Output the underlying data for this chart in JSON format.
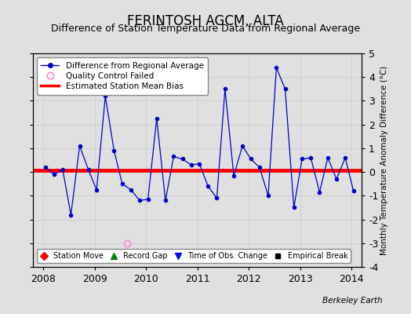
{
  "title": "FERINTOSH AGCM, ALTA",
  "subtitle": "Difference of Station Temperature Data from Regional Average",
  "ylabel_right": "Monthly Temperature Anomaly Difference (°C)",
  "xlim": [
    2007.8,
    2014.2
  ],
  "ylim": [
    -4,
    5
  ],
  "yticks": [
    -4,
    -3,
    -2,
    -1,
    0,
    1,
    2,
    3,
    4,
    5
  ],
  "xticks": [
    2008,
    2009,
    2010,
    2011,
    2012,
    2013,
    2014
  ],
  "bias_value": 0.07,
  "background_color": "#e0e0e0",
  "line_color": "#0000cc",
  "bias_color": "#ff0000",
  "watermark": "Berkeley Earth",
  "data_x": [
    2008.04,
    2008.21,
    2008.38,
    2008.54,
    2008.71,
    2008.88,
    2009.04,
    2009.21,
    2009.38,
    2009.54,
    2009.71,
    2009.88,
    2010.04,
    2010.21,
    2010.38,
    2010.54,
    2010.71,
    2010.88,
    2011.04,
    2011.21,
    2011.38,
    2011.54,
    2011.71,
    2011.88,
    2012.04,
    2012.21,
    2012.38,
    2012.54,
    2012.71,
    2012.88,
    2013.04,
    2013.21,
    2013.38,
    2013.54,
    2013.71,
    2013.88,
    2014.04
  ],
  "data_y": [
    0.2,
    -0.1,
    0.1,
    -1.8,
    1.1,
    0.1,
    -0.75,
    3.2,
    0.9,
    -0.5,
    -0.75,
    -1.2,
    -1.15,
    2.25,
    -1.2,
    0.65,
    0.55,
    0.3,
    0.35,
    -0.6,
    -1.1,
    3.5,
    -0.15,
    1.1,
    0.55,
    0.2,
    -1.0,
    4.4,
    3.5,
    -1.5,
    0.55,
    0.6,
    -0.85,
    0.6,
    -0.3,
    0.6,
    -0.8
  ],
  "qc_fail_x": [
    2009.63
  ],
  "qc_fail_y": [
    -3.0
  ],
  "grid_color": "#cccccc",
  "title_fontsize": 12,
  "subtitle_fontsize": 9
}
